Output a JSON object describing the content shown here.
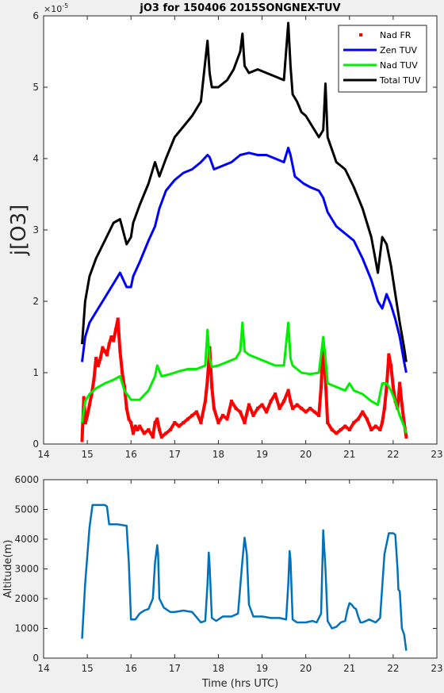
{
  "chart_data": [
    {
      "type": "line",
      "title": "jO3 for 150406 2015SONGNEX-TUV",
      "xlabel": "",
      "ylabel": "j[O3]",
      "y_exponent_label": "×10",
      "y_exponent": "-5",
      "xlim": [
        14,
        23
      ],
      "ylim": [
        0,
        6
      ],
      "x_ticks": [
        "14",
        "15",
        "16",
        "17",
        "18",
        "19",
        "20",
        "21",
        "22",
        "23"
      ],
      "y_ticks": [
        "0",
        "1",
        "2",
        "3",
        "4",
        "5",
        "6"
      ],
      "grid": false,
      "legend_position": "top-right",
      "series": [
        {
          "name": "Nad FR",
          "style": "markers",
          "color": "#ff0000",
          "x": [
            14.88,
            14.92,
            14.96,
            15.0,
            15.05,
            15.1,
            15.15,
            15.2,
            15.25,
            15.3,
            15.35,
            15.4,
            15.45,
            15.5,
            15.55,
            15.6,
            15.65,
            15.7,
            15.75,
            15.8,
            15.85,
            15.9,
            15.95,
            16.0,
            16.05,
            16.1,
            16.15,
            16.2,
            16.3,
            16.4,
            16.5,
            16.55,
            16.6,
            16.65,
            16.7,
            16.8,
            16.9,
            17.0,
            17.1,
            17.2,
            17.3,
            17.4,
            17.5,
            17.6,
            17.7,
            17.75,
            17.8,
            17.85,
            17.9,
            18.0,
            18.1,
            18.2,
            18.3,
            18.4,
            18.5,
            18.6,
            18.7,
            18.8,
            18.9,
            19.0,
            19.1,
            19.2,
            19.3,
            19.4,
            19.5,
            19.6,
            19.65,
            19.7,
            19.8,
            19.9,
            20.0,
            20.1,
            20.2,
            20.3,
            20.35,
            20.4,
            20.45,
            20.5,
            20.6,
            20.7,
            20.8,
            20.9,
            21.0,
            21.1,
            21.2,
            21.3,
            21.4,
            21.5,
            21.6,
            21.7,
            21.75,
            21.8,
            21.85,
            21.9,
            21.95,
            22.0,
            22.05,
            22.1,
            22.15,
            22.2,
            22.25,
            22.3
          ],
          "y": [
            0.05,
            0.65,
            0.3,
            0.4,
            0.55,
            0.7,
            0.9,
            1.2,
            1.1,
            1.2,
            1.35,
            1.3,
            1.25,
            1.4,
            1.5,
            1.45,
            1.6,
            1.75,
            1.3,
            1.0,
            0.8,
            0.5,
            0.35,
            0.3,
            0.15,
            0.25,
            0.2,
            0.25,
            0.15,
            0.2,
            0.1,
            0.3,
            0.35,
            0.2,
            0.1,
            0.15,
            0.2,
            0.3,
            0.25,
            0.3,
            0.35,
            0.4,
            0.45,
            0.3,
            0.6,
            0.9,
            1.35,
            0.8,
            0.5,
            0.3,
            0.4,
            0.35,
            0.6,
            0.5,
            0.45,
            0.3,
            0.55,
            0.4,
            0.5,
            0.55,
            0.45,
            0.6,
            0.7,
            0.5,
            0.6,
            0.75,
            0.6,
            0.5,
            0.55,
            0.5,
            0.45,
            0.5,
            0.45,
            0.4,
            0.8,
            1.4,
            0.9,
            0.3,
            0.2,
            0.15,
            0.2,
            0.25,
            0.2,
            0.3,
            0.35,
            0.45,
            0.35,
            0.2,
            0.25,
            0.2,
            0.3,
            0.5,
            0.8,
            1.25,
            1.1,
            0.8,
            0.6,
            0.5,
            0.85,
            0.55,
            0.3,
            0.1
          ]
        },
        {
          "name": "Zen TUV",
          "style": "line",
          "color": "#0000ff",
          "x": [
            14.88,
            14.95,
            15.05,
            15.2,
            15.4,
            15.6,
            15.75,
            15.9,
            16.0,
            16.05,
            16.2,
            16.4,
            16.55,
            16.65,
            16.8,
            17.0,
            17.2,
            17.4,
            17.6,
            17.75,
            17.8,
            17.9,
            18.1,
            18.3,
            18.5,
            18.7,
            18.9,
            19.1,
            19.3,
            19.5,
            19.6,
            19.65,
            19.75,
            19.85,
            19.95,
            20.1,
            20.3,
            20.4,
            20.5,
            20.7,
            20.9,
            21.1,
            21.3,
            21.5,
            21.65,
            21.75,
            21.85,
            21.95,
            22.05,
            22.15,
            22.25,
            22.3
          ],
          "y": [
            1.15,
            1.5,
            1.7,
            1.85,
            2.05,
            2.25,
            2.4,
            2.2,
            2.2,
            2.35,
            2.55,
            2.85,
            3.05,
            3.3,
            3.55,
            3.7,
            3.8,
            3.85,
            3.95,
            4.05,
            4.02,
            3.85,
            3.9,
            3.95,
            4.05,
            4.08,
            4.05,
            4.05,
            4.0,
            3.95,
            4.15,
            4.05,
            3.75,
            3.7,
            3.65,
            3.6,
            3.55,
            3.45,
            3.25,
            3.05,
            2.95,
            2.85,
            2.6,
            2.3,
            2.0,
            1.9,
            2.1,
            1.95,
            1.75,
            1.5,
            1.15,
            1.0
          ]
        },
        {
          "name": "Nad TUV",
          "style": "line",
          "color": "#00ee00",
          "x": [
            14.88,
            14.95,
            15.05,
            15.2,
            15.4,
            15.6,
            15.75,
            15.85,
            16.0,
            16.2,
            16.4,
            16.55,
            16.6,
            16.7,
            16.9,
            17.1,
            17.3,
            17.5,
            17.7,
            17.75,
            17.8,
            17.85,
            18.0,
            18.2,
            18.4,
            18.5,
            18.55,
            18.6,
            18.7,
            18.9,
            19.1,
            19.3,
            19.5,
            19.6,
            19.65,
            19.7,
            19.9,
            20.1,
            20.3,
            20.4,
            20.45,
            20.5,
            20.7,
            20.9,
            21.0,
            21.1,
            21.3,
            21.5,
            21.65,
            21.75,
            21.85,
            21.95,
            22.05,
            22.15,
            22.25,
            22.3
          ],
          "y": [
            0.3,
            0.6,
            0.7,
            0.78,
            0.85,
            0.9,
            0.95,
            0.75,
            0.62,
            0.62,
            0.75,
            0.95,
            1.1,
            0.95,
            0.98,
            1.02,
            1.05,
            1.05,
            1.1,
            1.6,
            1.2,
            1.08,
            1.1,
            1.15,
            1.2,
            1.3,
            1.7,
            1.3,
            1.25,
            1.2,
            1.15,
            1.1,
            1.1,
            1.7,
            1.2,
            1.1,
            1.0,
            0.98,
            1.0,
            1.5,
            1.2,
            0.85,
            0.8,
            0.75,
            0.85,
            0.75,
            0.7,
            0.6,
            0.55,
            0.85,
            0.85,
            0.75,
            0.6,
            0.4,
            0.25,
            0.15
          ]
        },
        {
          "name": "Total TUV",
          "style": "line",
          "color": "#000000",
          "x": [
            14.88,
            14.95,
            15.05,
            15.2,
            15.4,
            15.6,
            15.75,
            15.9,
            16.0,
            16.05,
            16.2,
            16.4,
            16.55,
            16.6,
            16.65,
            16.8,
            17.0,
            17.2,
            17.4,
            17.6,
            17.75,
            17.8,
            17.85,
            18.0,
            18.2,
            18.35,
            18.5,
            18.55,
            18.6,
            18.7,
            18.9,
            19.1,
            19.3,
            19.5,
            19.6,
            19.65,
            19.7,
            19.8,
            19.9,
            20.0,
            20.1,
            20.3,
            20.4,
            20.45,
            20.5,
            20.7,
            20.9,
            21.1,
            21.3,
            21.5,
            21.65,
            21.75,
            21.85,
            21.95,
            22.05,
            22.15,
            22.25,
            22.3
          ],
          "y": [
            1.4,
            2.0,
            2.35,
            2.6,
            2.85,
            3.1,
            3.15,
            2.8,
            2.9,
            3.1,
            3.35,
            3.65,
            3.95,
            3.85,
            3.75,
            4.0,
            4.3,
            4.45,
            4.6,
            4.8,
            5.65,
            5.2,
            5.0,
            5.0,
            5.1,
            5.25,
            5.5,
            5.75,
            5.3,
            5.2,
            5.25,
            5.2,
            5.15,
            5.1,
            5.9,
            5.3,
            4.9,
            4.8,
            4.65,
            4.6,
            4.5,
            4.3,
            4.4,
            5.05,
            4.3,
            3.95,
            3.85,
            3.6,
            3.3,
            2.9,
            2.4,
            2.9,
            2.8,
            2.5,
            2.1,
            1.7,
            1.35,
            1.15
          ]
        }
      ]
    },
    {
      "type": "line",
      "title": "",
      "xlabel": "Time (hrs UTC)",
      "ylabel": "Altitude(m)",
      "xlim": [
        14,
        23
      ],
      "ylim": [
        0,
        6000
      ],
      "x_ticks": [
        "14",
        "15",
        "16",
        "17",
        "18",
        "19",
        "20",
        "21",
        "22",
        "23"
      ],
      "y_ticks": [
        "0",
        "1000",
        "2000",
        "3000",
        "4000",
        "5000",
        "6000"
      ],
      "grid": false,
      "series": [
        {
          "color": "#0072bd",
          "x": [
            14.88,
            14.95,
            15.05,
            15.12,
            15.2,
            15.3,
            15.4,
            15.45,
            15.5,
            15.6,
            15.7,
            15.9,
            15.95,
            16.0,
            16.1,
            16.2,
            16.3,
            16.4,
            16.5,
            16.55,
            16.6,
            16.62,
            16.65,
            16.75,
            16.9,
            17.0,
            17.2,
            17.4,
            17.6,
            17.7,
            17.75,
            17.78,
            17.8,
            17.85,
            17.95,
            18.1,
            18.3,
            18.45,
            18.55,
            18.6,
            18.65,
            18.7,
            18.8,
            19.0,
            19.2,
            19.4,
            19.55,
            19.6,
            19.63,
            19.65,
            19.7,
            19.8,
            20.0,
            20.15,
            20.25,
            20.35,
            20.4,
            20.45,
            20.5,
            20.6,
            20.7,
            20.8,
            20.9,
            20.95,
            21.0,
            21.05,
            21.1,
            21.15,
            21.2,
            21.25,
            21.3,
            21.45,
            21.6,
            21.7,
            21.8,
            21.9,
            22.0,
            22.05,
            22.1,
            22.12,
            22.15,
            22.2,
            22.25,
            22.3
          ],
          "y": [
            650,
            2500,
            4400,
            5150,
            5150,
            5150,
            5150,
            5100,
            4500,
            4500,
            4500,
            4450,
            3200,
            1300,
            1300,
            1500,
            1600,
            1650,
            2000,
            3200,
            3800,
            3500,
            2000,
            1700,
            1550,
            1550,
            1600,
            1550,
            1200,
            1250,
            2500,
            3550,
            3100,
            1350,
            1250,
            1400,
            1400,
            1500,
            3300,
            4050,
            3500,
            1800,
            1400,
            1400,
            1350,
            1350,
            1300,
            2500,
            3600,
            3300,
            1300,
            1200,
            1200,
            1250,
            1200,
            1500,
            4300,
            3000,
            1250,
            1000,
            1050,
            1200,
            1250,
            1600,
            1850,
            1800,
            1700,
            1650,
            1400,
            1200,
            1200,
            1300,
            1200,
            1350,
            3500,
            4200,
            4200,
            4150,
            3000,
            2300,
            2250,
            1000,
            800,
            250
          ]
        }
      ]
    }
  ]
}
